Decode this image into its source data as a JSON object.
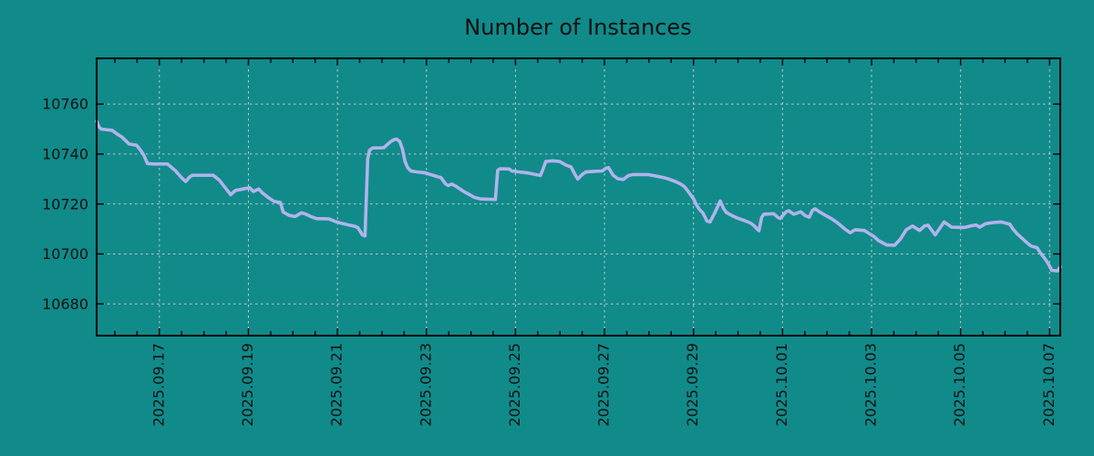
{
  "chart_data": {
    "type": "line",
    "title": "Number of Instances",
    "legend": "none",
    "grid": "dashed gridlines at major ticks, both axes",
    "colors": {
      "background": "#118a8a",
      "line": "#b0b3ec",
      "grid": "#cfcfcf",
      "axis": "#000000",
      "text": "#111111"
    },
    "x_axis": {
      "unit": "days since 2025-09-15 00:00",
      "min": 0.59,
      "max": 22.24,
      "minor_tick_step": 0.5,
      "major_ticks": [
        {
          "t": 2,
          "label": "2025.09.17"
        },
        {
          "t": 4,
          "label": "2025.09.19"
        },
        {
          "t": 6,
          "label": "2025.09.21"
        },
        {
          "t": 8,
          "label": "2025.09.23"
        },
        {
          "t": 10,
          "label": "2025.09.25"
        },
        {
          "t": 12,
          "label": "2025.09.27"
        },
        {
          "t": 14,
          "label": "2025.09.29"
        },
        {
          "t": 16,
          "label": "2025.10.01"
        },
        {
          "t": 18,
          "label": "2025.10.03"
        },
        {
          "t": 20,
          "label": "2025.10.05"
        },
        {
          "t": 22,
          "label": "2025.10.07"
        }
      ]
    },
    "y_axis": {
      "min": 10667.3,
      "max": 10778.3,
      "ticks": [
        10680,
        10700,
        10720,
        10740,
        10760
      ]
    },
    "series": [
      {
        "name": "instances",
        "color": "#b0b3ec",
        "points": [
          [
            0.59,
            10753.2
          ],
          [
            0.64,
            10751
          ],
          [
            0.69,
            10750
          ],
          [
            0.94,
            10749.5
          ],
          [
            1.05,
            10748
          ],
          [
            1.16,
            10746.8
          ],
          [
            1.32,
            10744
          ],
          [
            1.49,
            10743.5
          ],
          [
            1.6,
            10741
          ],
          [
            1.65,
            10739.5
          ],
          [
            1.7,
            10737.5
          ],
          [
            1.73,
            10736.2
          ],
          [
            1.86,
            10736
          ],
          [
            2.18,
            10736
          ],
          [
            2.35,
            10733.5
          ],
          [
            2.5,
            10730.5
          ],
          [
            2.59,
            10729
          ],
          [
            2.68,
            10730.8
          ],
          [
            2.74,
            10731.5
          ],
          [
            3.21,
            10731.5
          ],
          [
            3.35,
            10729.5
          ],
          [
            3.5,
            10726
          ],
          [
            3.6,
            10723.7
          ],
          [
            3.68,
            10725
          ],
          [
            3.72,
            10725.5
          ],
          [
            3.82,
            10725.8
          ],
          [
            3.88,
            10726
          ],
          [
            4.03,
            10726.5
          ],
          [
            4.11,
            10725
          ],
          [
            4.23,
            10726
          ],
          [
            4.31,
            10724.5
          ],
          [
            4.45,
            10722.5
          ],
          [
            4.58,
            10721
          ],
          [
            4.72,
            10720.6
          ],
          [
            4.78,
            10716.8
          ],
          [
            4.88,
            10715.8
          ],
          [
            4.93,
            10715.4
          ],
          [
            5.05,
            10715
          ],
          [
            5.19,
            10716.5
          ],
          [
            5.28,
            10716
          ],
          [
            5.4,
            10715
          ],
          [
            5.54,
            10714.1
          ],
          [
            5.7,
            10714.1
          ],
          [
            5.81,
            10714
          ],
          [
            5.95,
            10713
          ],
          [
            6.1,
            10712.2
          ],
          [
            6.26,
            10711.6
          ],
          [
            6.4,
            10711
          ],
          [
            6.46,
            10710.5
          ],
          [
            6.56,
            10707.6
          ],
          [
            6.62,
            10707.2
          ],
          [
            6.68,
            10738
          ],
          [
            6.72,
            10741.5
          ],
          [
            6.79,
            10742.4
          ],
          [
            7.04,
            10742.5
          ],
          [
            7.2,
            10745
          ],
          [
            7.28,
            10745.8
          ],
          [
            7.33,
            10746
          ],
          [
            7.4,
            10745
          ],
          [
            7.46,
            10742
          ],
          [
            7.52,
            10737
          ],
          [
            7.58,
            10734.5
          ],
          [
            7.65,
            10733.2
          ],
          [
            7.8,
            10732.8
          ],
          [
            7.96,
            10732.5
          ],
          [
            8.2,
            10731.2
          ],
          [
            8.33,
            10730.5
          ],
          [
            8.43,
            10728
          ],
          [
            8.49,
            10727.4
          ],
          [
            8.57,
            10728
          ],
          [
            8.67,
            10727
          ],
          [
            8.82,
            10725.2
          ],
          [
            8.94,
            10724
          ],
          [
            9.08,
            10722.6
          ],
          [
            9.23,
            10722
          ],
          [
            9.42,
            10721.9
          ],
          [
            9.55,
            10721.8
          ],
          [
            9.6,
            10733.5
          ],
          [
            9.65,
            10734.1
          ],
          [
            9.86,
            10734
          ],
          [
            9.92,
            10733.2
          ],
          [
            10.1,
            10732.8
          ],
          [
            10.25,
            10732.5
          ],
          [
            10.45,
            10731.8
          ],
          [
            10.56,
            10731.4
          ],
          [
            10.62,
            10734
          ],
          [
            10.68,
            10737
          ],
          [
            10.85,
            10737.3
          ],
          [
            10.99,
            10737
          ],
          [
            11.13,
            10735.6
          ],
          [
            11.25,
            10734.8
          ],
          [
            11.33,
            10732
          ],
          [
            11.4,
            10730
          ],
          [
            11.5,
            10731.8
          ],
          [
            11.58,
            10732.8
          ],
          [
            11.8,
            10733.1
          ],
          [
            11.95,
            10733.2
          ],
          [
            12.03,
            10734.3
          ],
          [
            12.09,
            10734.6
          ],
          [
            12.19,
            10731.6
          ],
          [
            12.3,
            10730.1
          ],
          [
            12.42,
            10729.8
          ],
          [
            12.54,
            10731.4
          ],
          [
            12.65,
            10731.8
          ],
          [
            12.97,
            10731.8
          ],
          [
            13.12,
            10731.3
          ],
          [
            13.32,
            10730.6
          ],
          [
            13.44,
            10730
          ],
          [
            13.59,
            10729
          ],
          [
            13.71,
            10728
          ],
          [
            13.79,
            10727
          ],
          [
            13.86,
            10725.5
          ],
          [
            13.93,
            10723.8
          ],
          [
            14.0,
            10722.1
          ],
          [
            14.07,
            10719.5
          ],
          [
            14.14,
            10717.7
          ],
          [
            14.21,
            10716.4
          ],
          [
            14.3,
            10713.2
          ],
          [
            14.37,
            10712.8
          ],
          [
            14.48,
            10716.5
          ],
          [
            14.57,
            10720
          ],
          [
            14.6,
            10721.2
          ],
          [
            14.68,
            10718
          ],
          [
            14.74,
            10716.6
          ],
          [
            14.88,
            10715.2
          ],
          [
            15.01,
            10714.2
          ],
          [
            15.15,
            10713.3
          ],
          [
            15.28,
            10712.4
          ],
          [
            15.36,
            10711.3
          ],
          [
            15.43,
            10710
          ],
          [
            15.47,
            10709.3
          ],
          [
            15.53,
            10714.6
          ],
          [
            15.58,
            10715.9
          ],
          [
            15.8,
            10716.1
          ],
          [
            15.89,
            10714.7
          ],
          [
            15.95,
            10714.2
          ],
          [
            16.08,
            10716.9
          ],
          [
            16.14,
            10717.3
          ],
          [
            16.25,
            10715.9
          ],
          [
            16.41,
            10716.9
          ],
          [
            16.51,
            10715.3
          ],
          [
            16.6,
            10714.7
          ],
          [
            16.67,
            10717.4
          ],
          [
            16.73,
            10718.1
          ],
          [
            16.83,
            10716.9
          ],
          [
            16.93,
            10715.8
          ],
          [
            17.11,
            10714
          ],
          [
            17.22,
            10712.7
          ],
          [
            17.34,
            10710.9
          ],
          [
            17.42,
            10709.7
          ],
          [
            17.52,
            10708.5
          ],
          [
            17.63,
            10709.7
          ],
          [
            17.84,
            10709.4
          ],
          [
            17.95,
            10708.1
          ],
          [
            18.04,
            10707.2
          ],
          [
            18.16,
            10705.3
          ],
          [
            18.34,
            10703.6
          ],
          [
            18.52,
            10703.5
          ],
          [
            18.65,
            10706
          ],
          [
            18.78,
            10709.7
          ],
          [
            18.92,
            10711.2
          ],
          [
            19.08,
            10709.4
          ],
          [
            19.19,
            10711.2
          ],
          [
            19.27,
            10711.5
          ],
          [
            19.43,
            10707.6
          ],
          [
            19.63,
            10712.8
          ],
          [
            19.8,
            10710.7
          ],
          [
            20.09,
            10710.6
          ],
          [
            20.25,
            10711.3
          ],
          [
            20.35,
            10711.6
          ],
          [
            20.43,
            10710.7
          ],
          [
            20.56,
            10712.1
          ],
          [
            20.75,
            10712.6
          ],
          [
            20.91,
            10712.8
          ],
          [
            21.11,
            10711.9
          ],
          [
            21.17,
            10710.1
          ],
          [
            21.27,
            10708.1
          ],
          [
            21.38,
            10706.3
          ],
          [
            21.48,
            10704.7
          ],
          [
            21.58,
            10703.2
          ],
          [
            21.72,
            10702.5
          ],
          [
            21.78,
            10700.8
          ],
          [
            21.93,
            10697.2
          ],
          [
            21.99,
            10695.4
          ],
          [
            22.05,
            10693.4
          ],
          [
            22.18,
            10693.2
          ],
          [
            22.24,
            10694.8
          ]
        ]
      }
    ]
  }
}
